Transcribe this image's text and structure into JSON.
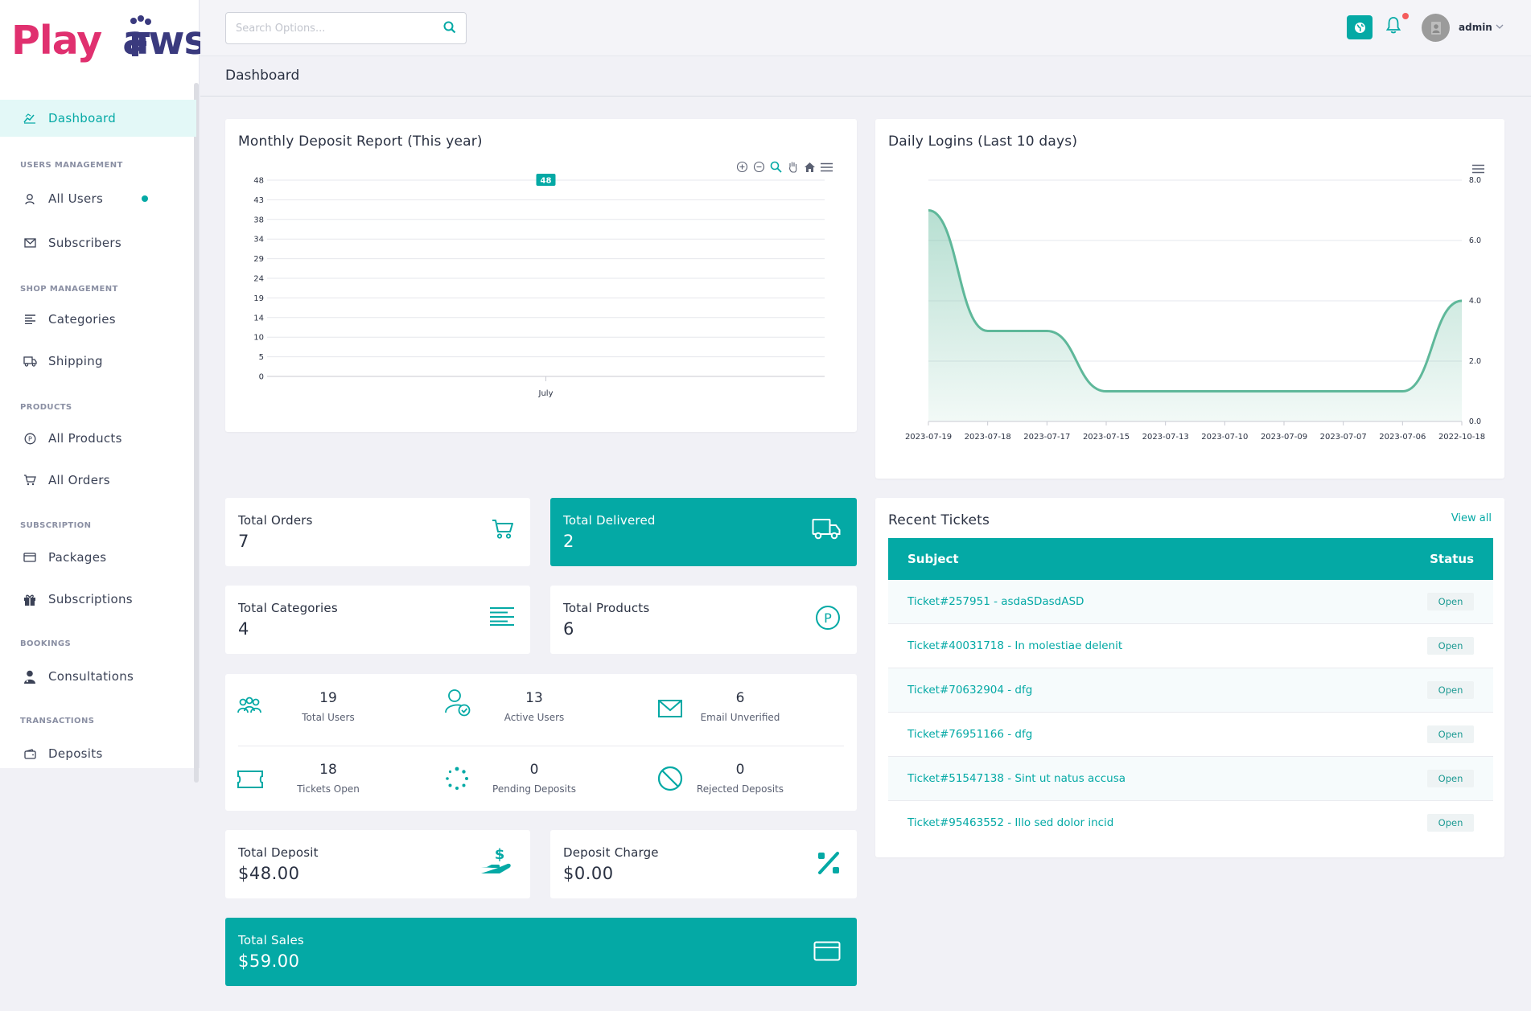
{
  "brand": {
    "logo_left": "Play",
    "logo_right": "aws"
  },
  "sidebar": {
    "items": [
      {
        "label": "Dashboard",
        "icon": "chart-line-icon",
        "active": true
      },
      {
        "heading": "USERS MANAGEMENT"
      },
      {
        "label": "All Users",
        "icon": "user-icon",
        "badge_dot": true
      },
      {
        "label": "Subscribers",
        "icon": "mail-icon"
      },
      {
        "heading": "SHOP MANAGEMENT"
      },
      {
        "label": "Categories",
        "icon": "list-icon"
      },
      {
        "label": "Shipping",
        "icon": "truck-icon"
      },
      {
        "heading": "PRODUCTS"
      },
      {
        "label": "All Products",
        "icon": "product-p-icon"
      },
      {
        "label": "All Orders",
        "icon": "cart-icon"
      },
      {
        "heading": "SUBSCRIPTION"
      },
      {
        "label": "Packages",
        "icon": "credit-card-icon"
      },
      {
        "label": "Subscriptions",
        "icon": "gift-icon"
      },
      {
        "heading": "BOOKINGS"
      },
      {
        "label": "Consultations",
        "icon": "doctor-icon"
      },
      {
        "heading": "TRANSACTIONS"
      },
      {
        "label": "Deposits",
        "icon": "wallet-icon"
      }
    ]
  },
  "topbar": {
    "search_placeholder": "Search Options...",
    "admin_name": "admin"
  },
  "page": {
    "title": "Dashboard"
  },
  "deposit_chart": {
    "title": "Monthly Deposit Report (This year)",
    "data_label": "48"
  },
  "logins_chart": {
    "title": "Daily Logins (Last 10 days)"
  },
  "chart_data": [
    {
      "type": "bar",
      "title": "Monthly Deposit Report (This year)",
      "categories": [
        "July"
      ],
      "values": [
        48
      ],
      "yticks": [
        "48",
        "43",
        "38",
        "34",
        "29",
        "24",
        "19",
        "14",
        "10",
        "5",
        "0"
      ],
      "ylim": [
        0,
        48
      ],
      "grid": true
    },
    {
      "type": "area",
      "title": "Daily Logins (Last 10 days)",
      "x": [
        "2023-07-19",
        "2023-07-18",
        "2023-07-17",
        "2023-07-15",
        "2023-07-13",
        "2023-07-10",
        "2023-07-09",
        "2023-07-07",
        "2023-07-06",
        "2022-10-18"
      ],
      "values": [
        7,
        3,
        3,
        1,
        1,
        1,
        1,
        1,
        1,
        4
      ],
      "yticks": [
        "8.0",
        "6.0",
        "4.0",
        "2.0",
        "0.0"
      ],
      "ylim": [
        0,
        8
      ],
      "y_axis_side": "right",
      "grid": true
    }
  ],
  "stats": {
    "total_orders": {
      "label": "Total Orders",
      "value": "7"
    },
    "total_delivered": {
      "label": "Total Delivered",
      "value": "2"
    },
    "total_categories": {
      "label": "Total Categories",
      "value": "4"
    },
    "total_products": {
      "label": "Total Products",
      "value": "6"
    },
    "total_deposit": {
      "label": "Total Deposit",
      "value": "$48.00"
    },
    "deposit_charge": {
      "label": "Deposit Charge",
      "value": "$0.00"
    },
    "total_sales": {
      "label": "Total Sales",
      "value": "$59.00"
    }
  },
  "mini_stats": [
    {
      "value": "19",
      "label": "Total Users",
      "icon": "users-group-icon"
    },
    {
      "value": "13",
      "label": "Active Users",
      "icon": "user-check-icon"
    },
    {
      "value": "6",
      "label": "Email Unverified",
      "icon": "envelope-icon"
    },
    {
      "value": "18",
      "label": "Tickets Open",
      "icon": "ticket-icon"
    },
    {
      "value": "0",
      "label": "Pending Deposits",
      "icon": "spinner-icon"
    },
    {
      "value": "0",
      "label": "Rejected Deposits",
      "icon": "ban-icon"
    }
  ],
  "tickets": {
    "title": "Recent Tickets",
    "view_all": "View all",
    "col_subject": "Subject",
    "col_status": "Status",
    "rows": [
      {
        "subject": "Ticket#257951 - asdaSDasdASD",
        "status": "Open"
      },
      {
        "subject": "Ticket#40031718 - In molestiae delenit",
        "status": "Open"
      },
      {
        "subject": "Ticket#70632904 - dfg",
        "status": "Open"
      },
      {
        "subject": "Ticket#76951166 - dfg",
        "status": "Open"
      },
      {
        "subject": "Ticket#51547138 - Sint ut natus accusa",
        "status": "Open"
      },
      {
        "subject": "Ticket#95463552 - Illo sed dolor incid",
        "status": "Open"
      }
    ]
  },
  "colors": {
    "accent": "#04a9a5",
    "line": "#5fb89a",
    "pink": "#e0306f",
    "navy": "#3a3a7e"
  }
}
